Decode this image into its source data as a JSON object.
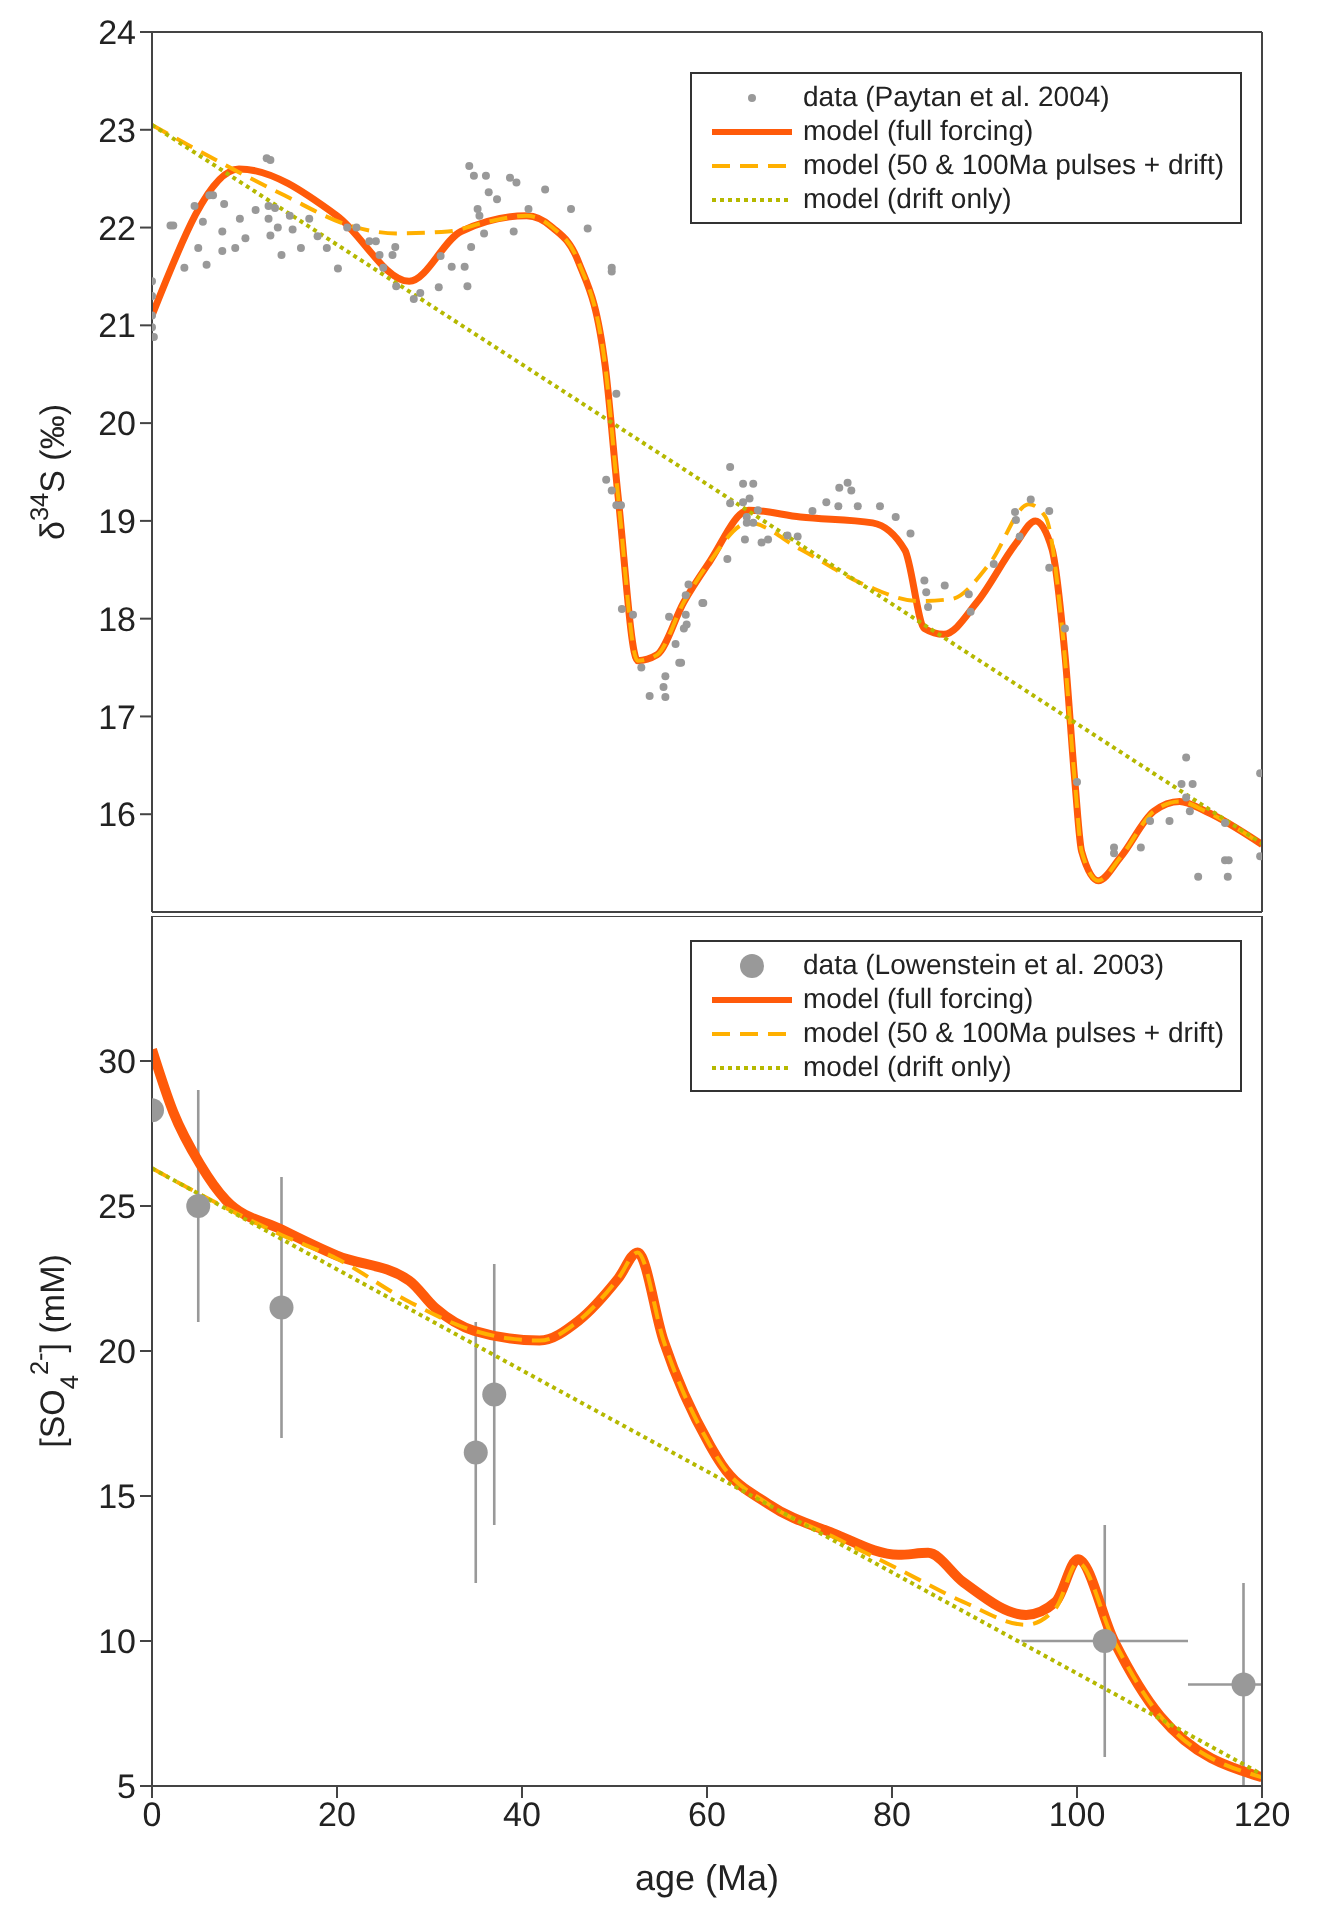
{
  "chart_data": [
    {
      "type": "line",
      "ylabel": "δ$^{34}$S (‰)",
      "xlim": [
        0,
        120
      ],
      "xticks": [
        0,
        20,
        40,
        60,
        80,
        100,
        120
      ],
      "ylim": [
        15,
        24
      ],
      "yticks": [
        16,
        17,
        18,
        19,
        20,
        21,
        22,
        23,
        24
      ],
      "tick_labels": "y",
      "grid": false,
      "legend": "top right",
      "series": [
        {
          "name": "data (Paytan et al. 2004)",
          "type": "scatter",
          "marker": "circle",
          "color": "#999999",
          "x": [
            0,
            0,
            0,
            0,
            0.2,
            2,
            2.3,
            3.5,
            4.6,
            5,
            5.5,
            5.9,
            6.2,
            6.6,
            7.6,
            7.6,
            7.8,
            9,
            9.5,
            10.1,
            11.2,
            12.4,
            12.8,
            12.6,
            12.6,
            12.8,
            13.3,
            13.6,
            14,
            14.9,
            15.2,
            16.1,
            17,
            17.9,
            18.9,
            20.1,
            21.1,
            22.1,
            23.5,
            24.2,
            24.6,
            25,
            26,
            26.3,
            26.4,
            28.3,
            29,
            31,
            31.2,
            32.4,
            33.8,
            34.1,
            34.5,
            34.3,
            34.8,
            35.2,
            35.4,
            35.9,
            36.1,
            36.4,
            37.3,
            38.7,
            39.4,
            39.1,
            40.7,
            42.5,
            45.3,
            47.1,
            49.7,
            49.7,
            50.2,
            49.1,
            49.7,
            50.2,
            50.7,
            50.8,
            52,
            52.9,
            53.8,
            55.3,
            55.5,
            55.9,
            55.5,
            56.6,
            57.2,
            58,
            57.8,
            59.6,
            57,
            57.5,
            57.7,
            59.5,
            57.7,
            62.2,
            62.5,
            62.5,
            63.9,
            65,
            63.9,
            64.3,
            64.6,
            64.3,
            65,
            65.5,
            65.9,
            64.1,
            66.6,
            68.7,
            69.8,
            71.4,
            72.9,
            74.2,
            74.3,
            75.2,
            75.6,
            76.3,
            78.7,
            80.4,
            82,
            83.5,
            83.7,
            83.9,
            85.7,
            88.3,
            88.5,
            91,
            93.3,
            93.4,
            93.8,
            95,
            97,
            97,
            98.7,
            100,
            104,
            104,
            106.9,
            107.9,
            110,
            111.3,
            111.8,
            111.8,
            112.5,
            113.1,
            112.2,
            116,
            116,
            116.4,
            116.3,
            119.8,
            119.8
          ],
          "values": [
            21.45,
            21.3,
            21.1,
            20.98,
            20.88,
            22.02,
            22.02,
            21.59,
            22.22,
            21.79,
            22.06,
            21.62,
            22.33,
            22.33,
            21.96,
            21.76,
            22.24,
            21.79,
            22.09,
            21.89,
            22.18,
            22.71,
            22.69,
            22.22,
            22.09,
            21.92,
            22.2,
            22,
            21.72,
            22.12,
            21.98,
            21.79,
            22.09,
            21.91,
            21.79,
            21.58,
            22,
            22,
            21.86,
            21.86,
            21.72,
            21.59,
            21.72,
            21.8,
            21.4,
            21.27,
            21.33,
            21.39,
            21.71,
            21.6,
            21.6,
            21.4,
            21.8,
            22.63,
            22.53,
            22.19,
            22.12,
            21.94,
            22.53,
            22.36,
            22.29,
            22.51,
            22.46,
            21.96,
            22.19,
            22.39,
            22.19,
            21.99,
            21.59,
            21.55,
            20.3,
            19.42,
            19.31,
            19.16,
            19.16,
            18.1,
            18.04,
            17.5,
            17.21,
            17.3,
            17.2,
            18.02,
            17.41,
            17.74,
            17.55,
            18.35,
            17.94,
            18.16,
            17.55,
            17.9,
            18.04,
            18.16,
            18.24,
            18.61,
            19.55,
            19.18,
            19.38,
            19.38,
            19.19,
            19.04,
            19.23,
            18.98,
            18.98,
            19.11,
            18.78,
            18.81,
            18.81,
            18.85,
            18.84,
            19.1,
            19.19,
            19.15,
            19.34,
            19.39,
            19.31,
            19.15,
            19.15,
            19.04,
            18.87,
            18.39,
            18.27,
            18.12,
            18.34,
            18.25,
            18.07,
            18.56,
            19.09,
            19.01,
            18.84,
            19.22,
            19.1,
            18.52,
            17.9,
            16.33,
            15.6,
            15.66,
            15.66,
            15.93,
            15.93,
            16.31,
            16.58,
            16.17,
            16.31,
            15.36,
            16.03,
            15.91,
            15.53,
            15.53,
            15.36,
            16.42,
            15.57
          ]
        },
        {
          "name": "model (full forcing)",
          "type": "line",
          "line_style": "solid",
          "color": "#ff5a0a",
          "x": [
            0,
            9.4,
            20,
            27.8,
            33.4,
            40.5,
            43.3,
            46.1,
            49,
            50.4,
            52.5,
            54.6,
            57.5,
            60.2,
            64.5,
            70.1,
            77.9,
            81.4,
            83.5,
            85.6,
            89.2,
            93.4,
            95.5,
            97.3,
            98.7,
            99.8,
            100.5,
            102.3,
            104.7,
            108.3,
            111.1,
            113.9,
            120
          ],
          "values": [
            21.1,
            22.6,
            22.12,
            21.45,
            21.96,
            22.12,
            22,
            21.65,
            20.58,
            19.24,
            17.57,
            17.63,
            18.17,
            18.57,
            19.11,
            19.04,
            18.98,
            18.7,
            17.9,
            17.84,
            18.17,
            18.77,
            19,
            18.71,
            17.63,
            16.3,
            15.62,
            15.32,
            15.56,
            16.03,
            16.13,
            16.03,
            15.69
          ]
        },
        {
          "name": "model (50 & 100Ma pulses + drift)",
          "type": "line",
          "line_style": "dashed",
          "color": "#ffb000",
          "x": [
            0,
            8.7,
            14.3,
            21.4,
            26.4,
            32,
            36.3,
            40.5,
            43.3,
            46.1,
            49,
            50.4,
            52.5,
            54.6,
            57.5,
            60.2,
            64.5,
            70.1,
            77.2,
            82.8,
            86.4,
            90.6,
            94.8,
            96.6,
            98.4,
            99.8,
            100.5,
            102.3,
            104.7,
            108.3,
            111.1,
            113.9,
            120
          ],
          "values": [
            23.05,
            22.6,
            22.33,
            22.02,
            21.94,
            21.96,
            22.06,
            22.12,
            22,
            21.65,
            20.58,
            19.24,
            17.57,
            17.63,
            18.17,
            18.57,
            18.98,
            18.71,
            18.34,
            18.18,
            18.2,
            18.57,
            19.17,
            19.04,
            17.9,
            16.3,
            15.62,
            15.32,
            15.56,
            16.03,
            16.13,
            16.03,
            15.69
          ]
        },
        {
          "name": "model (drift only)",
          "type": "line",
          "line_style": "dotted",
          "color": "#b5b800",
          "x": [
            0,
            120
          ],
          "values": [
            23.05,
            15.7
          ]
        }
      ]
    },
    {
      "type": "line",
      "xlabel": "age (Ma)",
      "ylabel": "[SO$_{4}$$^{2-}$] (mM)",
      "xlim": [
        0,
        120
      ],
      "xticks": [
        0,
        20,
        40,
        60,
        80,
        100,
        120
      ],
      "ylim": [
        5,
        35
      ],
      "yticks": [
        5,
        10,
        15,
        20,
        25,
        30
      ],
      "grid": false,
      "legend": "top right",
      "series": [
        {
          "name": "data (Lowenstein et al. 2003)",
          "type": "scatter",
          "marker": "circle",
          "color": "#999999",
          "x": [
            0,
            5,
            14,
            35,
            37,
            103,
            118
          ],
          "values": [
            28.3,
            25,
            21.5,
            16.5,
            18.5,
            10,
            8.5
          ],
          "errors": [
            null,
            [
              21,
              29
            ],
            [
              17,
              26
            ],
            [
              12,
              21
            ],
            [
              14,
              23
            ],
            [
              6,
              14
            ],
            [
              5,
              12
            ]
          ],
          "xerrors": [
            null,
            null,
            null,
            null,
            null,
            [
              94,
              112
            ],
            [
              112,
              120
            ]
          ]
        },
        {
          "name": "model (full forcing)",
          "type": "line",
          "line_style": "solid",
          "color": "#ff5a0a",
          "x": [
            0,
            2.3,
            5.2,
            8,
            14,
            20,
            27.8,
            30.6,
            34.8,
            41.9,
            46.1,
            50.4,
            52.5,
            55.3,
            60.3,
            61.6,
            66.6,
            73.6,
            80.7,
            83.9,
            87.7,
            94.5,
            97.7,
            100.1,
            104,
            109,
            120
          ],
          "values": [
            30.4,
            28.24,
            26.44,
            25.2,
            24.19,
            23.29,
            22.43,
            21.49,
            20.7,
            20.36,
            21.04,
            22.5,
            23.4,
            20.36,
            16.76,
            16.08,
            14.73,
            13.72,
            12.97,
            13.04,
            12.03,
            10.9,
            11.35,
            12.82,
            10,
            7.41,
            5.3
          ]
        },
        {
          "name": "model (50 & 100Ma pulses + drift)",
          "type": "line",
          "line_style": "dashed",
          "color": "#ffb000",
          "x": [
            0,
            14,
            20,
            27.8,
            34.8,
            41.9,
            46.1,
            50.4,
            52.5,
            55.3,
            60.3,
            61.6,
            66.6,
            73.6,
            80.7,
            87.7,
            94.5,
            97.7,
            100.1,
            104,
            109,
            120
          ],
          "values": [
            26.3,
            24,
            23.18,
            21.7,
            20.7,
            20.36,
            21.04,
            22.5,
            23.4,
            20.36,
            16.76,
            16.08,
            14.73,
            13.6,
            12.48,
            11.35,
            10.56,
            11.13,
            12.7,
            10,
            7.41,
            5.3
          ]
        },
        {
          "name": "model (drift only)",
          "type": "line",
          "line_style": "dotted",
          "color": "#b5b800",
          "x": [
            0,
            120
          ],
          "values": [
            26.3,
            5.4
          ]
        }
      ]
    }
  ]
}
